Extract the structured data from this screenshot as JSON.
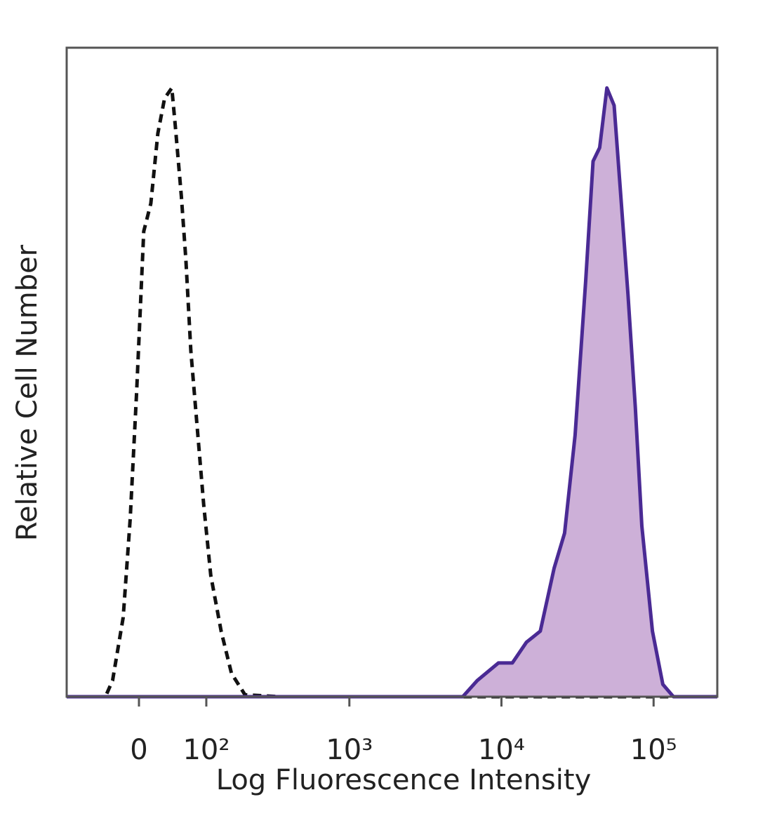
{
  "chart_data": {
    "type": "histogram-overlay",
    "xlabel": "Log Fluorescence Intensity",
    "ylabel": "Relative Cell Number",
    "xscale": "biexponential",
    "xlim": [
      -110,
      262144
    ],
    "ylim": [
      0,
      100
    ],
    "xticks": [
      0,
      {
        "value": 100,
        "label": "10²"
      },
      {
        "value": 1000,
        "label": "10³"
      },
      {
        "value": 10000,
        "label": "10⁴"
      },
      {
        "value": 100000,
        "label": "10⁵"
      }
    ],
    "series": [
      {
        "color": "#111111",
        "dashed": true,
        "fill": null,
        "x": [
          -110,
          -44,
          -34,
          -20,
          -11,
          -3,
          6,
          15,
          24,
          33,
          43,
          48,
          57,
          64,
          72,
          82,
          95,
          109,
          132,
          158,
          198,
          350,
          262144
        ],
        "values": [
          0,
          0,
          2.5,
          12.2,
          27.4,
          46.8,
          71.7,
          76,
          86.8,
          92.2,
          93.8,
          87.9,
          77.1,
          67.4,
          53.3,
          42.5,
          29.5,
          18.7,
          10.1,
          3.6,
          0.3,
          0,
          0
        ]
      },
      {
        "color": "#4a2a94",
        "dashed": false,
        "fill": "#cdb0d8",
        "x": [
          -110,
          5570,
          6940,
          9550,
          11800,
          14600,
          18000,
          22200,
          26000,
          30500,
          35800,
          40000,
          44200,
          49300,
          55000,
          61400,
          67900,
          75800,
          83700,
          98300,
          115000,
          135000,
          262144
        ],
        "values": [
          0,
          0,
          2.5,
          5.2,
          5.2,
          8.4,
          10.1,
          19.8,
          25.2,
          40.3,
          64.1,
          82.5,
          84.6,
          93.8,
          91.1,
          76,
          61.9,
          44.6,
          26.3,
          10.1,
          1.9,
          0,
          0
        ]
      }
    ]
  }
}
